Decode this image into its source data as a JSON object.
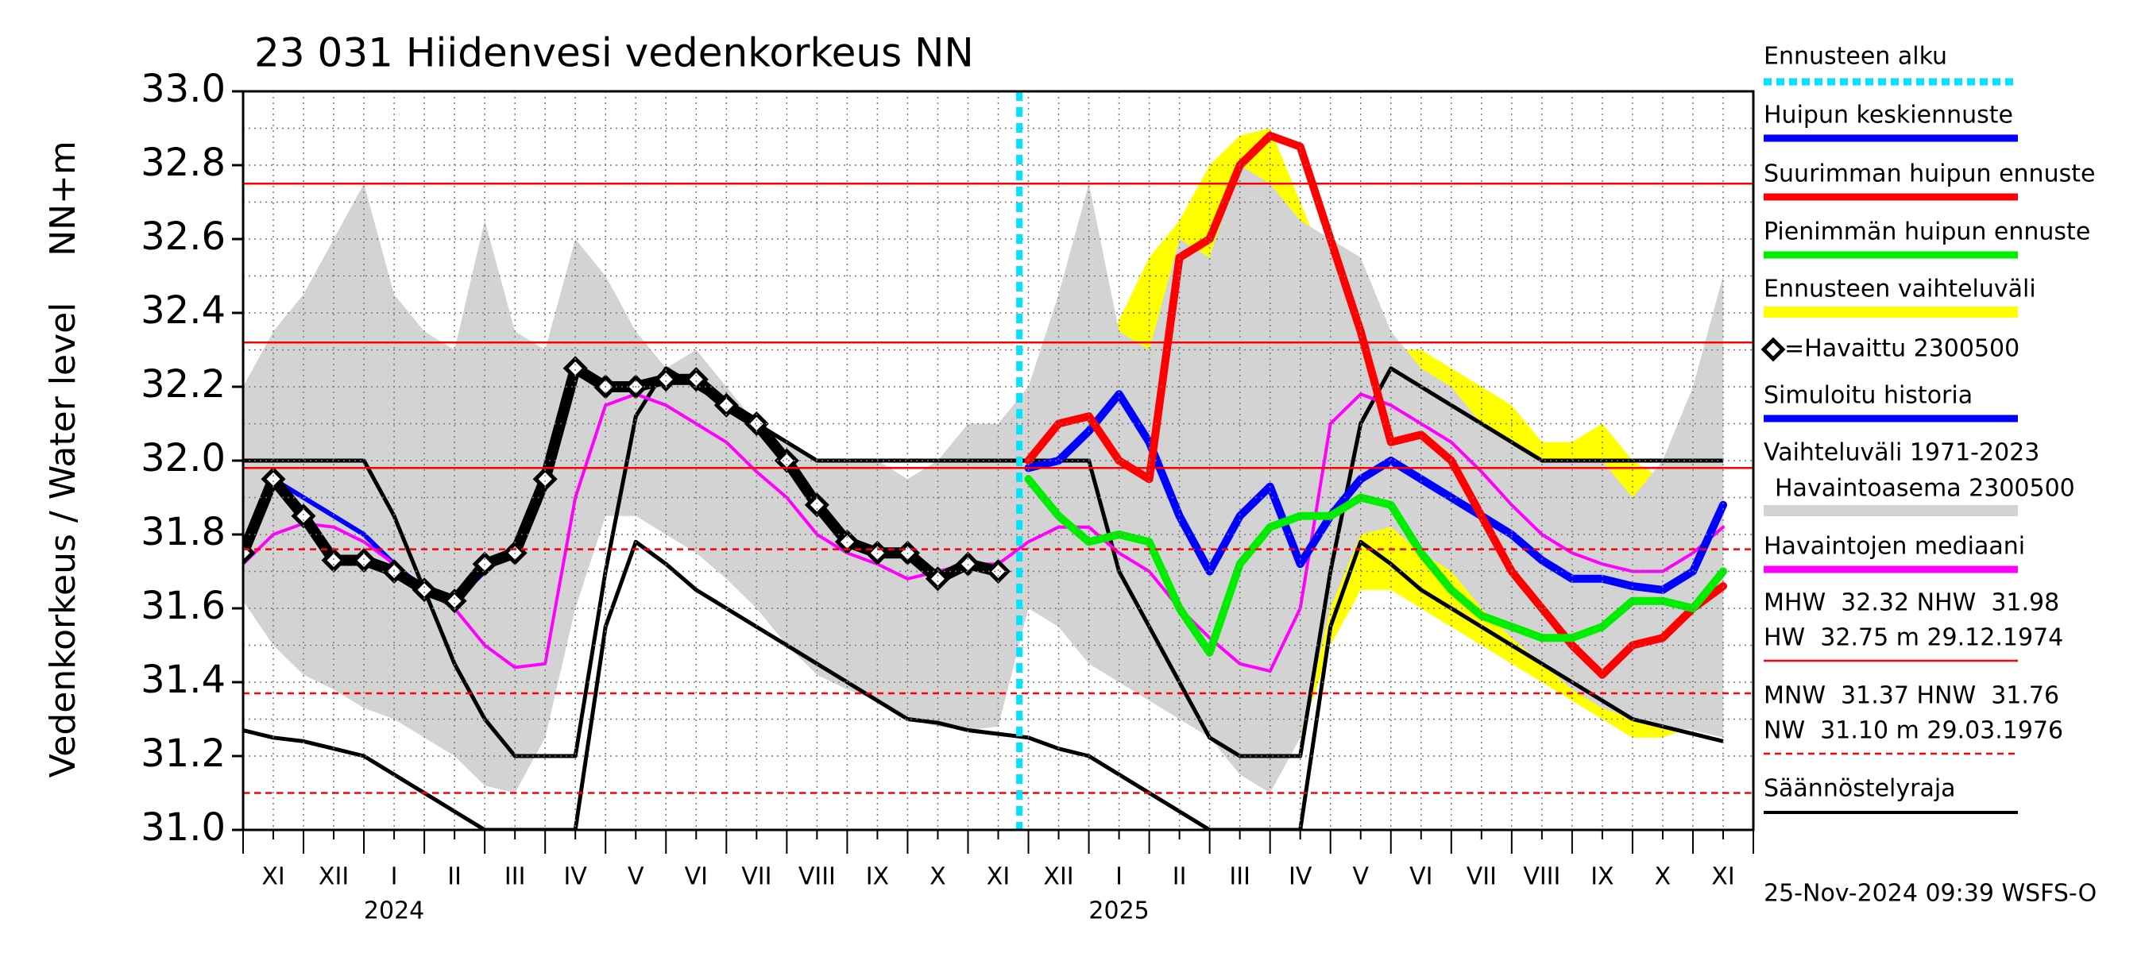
{
  "chart_data": {
    "type": "line",
    "title": "23 031 Hiidenvesi vedenkorkeus NN",
    "y_label": "Vedenkorkeus / Water level",
    "y_unit_label": "NN+m",
    "timestamp": "25-Nov-2024 09:39 WSFS-O",
    "categories": [
      null,
      "XI",
      null,
      "XII",
      null,
      "I",
      null,
      "II",
      null,
      "III",
      null,
      "IV",
      null,
      "V",
      null,
      "VI",
      null,
      "VII",
      null,
      "VIII",
      null,
      "IX",
      null,
      "X",
      null,
      "XI",
      null,
      "XII",
      null,
      "I",
      null,
      "II",
      null,
      "III",
      null,
      "IV",
      null,
      "V",
      null,
      "VI",
      null,
      "VII",
      null,
      "VIII",
      null,
      "IX",
      null,
      "X",
      null,
      "XI"
    ],
    "year_labels": [
      null,
      null,
      null,
      null,
      null,
      "2024",
      null,
      null,
      null,
      null,
      null,
      null,
      null,
      null,
      null,
      null,
      null,
      null,
      null,
      null,
      null,
      null,
      null,
      null,
      null,
      null,
      null,
      null,
      null,
      "2025",
      null,
      null,
      null,
      null,
      null,
      null,
      null,
      null,
      null,
      null,
      null,
      null,
      null,
      null,
      null,
      null,
      null,
      null,
      null,
      null
    ],
    "ylim": [
      31.0,
      33.0
    ],
    "yticks": [
      {
        "value": 31,
        "label": "31.0"
      },
      31.2,
      31.4,
      31.6,
      31.8,
      {
        "value": 32,
        "label": "32.0"
      },
      32.2,
      32.4,
      32.6,
      32.8,
      {
        "value": 33,
        "label": "33.0"
      }
    ],
    "y_minor_ticks": [
      31.1,
      31.3,
      31.5,
      31.7,
      31.9,
      32.1,
      32.3,
      32.5,
      32.7,
      32.9
    ],
    "grid": true,
    "forecast": {
      "name": "Ennusteen alku",
      "color": "#00e5ff",
      "start": 25.7
    },
    "series": [
      {
        "name": "Huipun keskiennuste",
        "type": "line",
        "color": "#0000ff",
        "width": 10,
        "values": [
          null,
          null,
          null,
          null,
          null,
          null,
          null,
          null,
          null,
          null,
          null,
          null,
          null,
          null,
          null,
          null,
          null,
          null,
          null,
          null,
          null,
          null,
          null,
          null,
          null,
          null,
          31.98,
          32.0,
          32.08,
          32.18,
          32.05,
          31.85,
          31.7,
          31.85,
          31.93,
          31.72,
          31.85,
          31.95,
          32.0,
          31.95,
          31.9,
          31.85,
          31.8,
          31.73,
          31.68,
          31.68,
          31.66,
          31.65,
          31.7,
          31.88
        ]
      },
      {
        "name": "Suurimman huipun ennuste",
        "type": "line",
        "color": "#ff0000",
        "width": 10,
        "values": [
          null,
          null,
          null,
          null,
          null,
          null,
          null,
          null,
          null,
          null,
          null,
          null,
          null,
          null,
          null,
          null,
          null,
          null,
          null,
          null,
          null,
          null,
          null,
          null,
          null,
          null,
          32.0,
          32.1,
          32.12,
          32.0,
          31.95,
          32.55,
          32.6,
          32.8,
          32.88,
          32.85,
          32.6,
          32.35,
          32.05,
          32.07,
          32.0,
          31.85,
          31.7,
          31.6,
          31.5,
          31.42,
          31.5,
          31.52,
          31.6,
          31.66
        ]
      },
      {
        "name": "Pienimmän huipun ennuste",
        "type": "line",
        "color": "#00ee00",
        "width": 10,
        "values": [
          null,
          null,
          null,
          null,
          null,
          null,
          null,
          null,
          null,
          null,
          null,
          null,
          null,
          null,
          null,
          null,
          null,
          null,
          null,
          null,
          null,
          null,
          null,
          null,
          null,
          null,
          31.95,
          31.85,
          31.78,
          31.8,
          31.78,
          31.6,
          31.48,
          31.72,
          31.82,
          31.85,
          31.85,
          31.9,
          31.88,
          31.75,
          31.65,
          31.58,
          31.55,
          31.52,
          31.52,
          31.55,
          31.62,
          31.62,
          31.6,
          31.7
        ]
      },
      {
        "name": "Ennusteen vaihteluväli",
        "type": "band",
        "color": "#ffff00",
        "lower": [
          null,
          null,
          null,
          null,
          null,
          null,
          null,
          null,
          null,
          null,
          null,
          null,
          null,
          null,
          null,
          null,
          null,
          null,
          null,
          null,
          null,
          null,
          null,
          null,
          null,
          null,
          31.95,
          31.82,
          31.72,
          31.65,
          31.58,
          31.5,
          31.4,
          31.35,
          31.3,
          31.25,
          31.5,
          31.65,
          31.65,
          31.6,
          31.55,
          31.5,
          31.45,
          31.4,
          31.35,
          31.3,
          31.25,
          31.25,
          31.28,
          31.3
        ],
        "upper": [
          null,
          null,
          null,
          null,
          null,
          null,
          null,
          null,
          null,
          null,
          null,
          null,
          null,
          null,
          null,
          null,
          null,
          null,
          null,
          null,
          null,
          null,
          null,
          null,
          null,
          null,
          32.0,
          32.1,
          32.2,
          32.38,
          32.55,
          32.65,
          32.8,
          32.88,
          32.9,
          32.7,
          32.5,
          32.35,
          32.3,
          32.3,
          32.25,
          32.2,
          32.15,
          32.05,
          32.05,
          32.1,
          32.0,
          31.95,
          32.0,
          32.2
        ]
      },
      {
        "name": "=Havaittu 2300500",
        "type": "points",
        "color": "#000000",
        "values": [
          31.75,
          31.95,
          31.85,
          31.73,
          31.73,
          31.7,
          31.65,
          31.62,
          31.72,
          31.75,
          31.95,
          32.25,
          32.2,
          32.2,
          32.22,
          32.22,
          32.15,
          32.1,
          32.0,
          31.88,
          31.78,
          31.75,
          31.75,
          31.68,
          31.72,
          31.7,
          null,
          null,
          null,
          null,
          null,
          null,
          null,
          null,
          null,
          null,
          null,
          null,
          null,
          null,
          null,
          null,
          null,
          null,
          null,
          null,
          null,
          null,
          null,
          null
        ]
      },
      {
        "name": "Simuloitu historia",
        "type": "line",
        "color": "#0000ff",
        "width": 6,
        "values": [
          31.75,
          31.95,
          31.9,
          31.85,
          31.8,
          31.72,
          31.65,
          31.62,
          31.7,
          null,
          null,
          null,
          null,
          null,
          null,
          null,
          null,
          null,
          null,
          null,
          null,
          null,
          null,
          null,
          null,
          null,
          null,
          null,
          null,
          null,
          null,
          null,
          null,
          null,
          null,
          null,
          null,
          null,
          null,
          null,
          null,
          null,
          null,
          null,
          null,
          null,
          null,
          null,
          null,
          null
        ]
      },
      {
        "name": "Vaihteluväli 1971-2023",
        "name_2": "Havaintoasema 2300500",
        "type": "band",
        "color": "#d3d3d3",
        "lower": [
          31.62,
          31.5,
          31.42,
          31.38,
          31.33,
          31.3,
          31.25,
          31.2,
          31.12,
          31.1,
          31.25,
          31.6,
          31.85,
          31.85,
          31.8,
          31.75,
          31.68,
          31.6,
          31.5,
          31.42,
          31.38,
          31.35,
          31.3,
          31.28,
          31.27,
          31.28,
          31.6,
          31.55,
          31.45,
          31.4,
          31.35,
          31.3,
          31.25,
          31.15,
          31.1,
          31.25,
          31.6,
          31.8,
          31.82,
          31.75,
          31.7,
          31.6,
          31.52,
          31.45,
          31.38,
          31.33,
          31.3,
          31.28,
          31.27,
          31.25
        ],
        "upper": [
          32.2,
          32.35,
          32.45,
          32.6,
          32.75,
          32.45,
          32.35,
          32.3,
          32.65,
          32.35,
          32.3,
          32.6,
          32.5,
          32.35,
          32.25,
          32.3,
          32.2,
          32.1,
          32.05,
          32.0,
          32.0,
          32.0,
          31.95,
          32.0,
          32.1,
          32.1,
          32.2,
          32.45,
          32.75,
          32.35,
          32.3,
          32.6,
          32.55,
          32.8,
          32.75,
          32.65,
          32.6,
          32.55,
          32.35,
          32.25,
          32.2,
          32.1,
          32.05,
          32.0,
          32.0,
          32.0,
          31.9,
          32.0,
          32.2,
          32.5
        ]
      },
      {
        "name": "Havaintojen mediaani",
        "type": "line",
        "color": "#ff00ff",
        "width": 4,
        "values": [
          31.72,
          31.8,
          31.83,
          31.82,
          31.78,
          31.72,
          31.65,
          31.6,
          31.5,
          31.44,
          31.45,
          31.9,
          32.15,
          32.18,
          32.15,
          32.1,
          32.05,
          31.97,
          31.9,
          31.8,
          31.75,
          31.72,
          31.68,
          31.7,
          31.72,
          31.72,
          31.78,
          31.82,
          31.82,
          31.75,
          31.7,
          31.6,
          31.52,
          31.45,
          31.43,
          31.6,
          32.1,
          32.18,
          32.15,
          32.1,
          32.05,
          31.97,
          31.88,
          31.8,
          31.75,
          31.72,
          31.7,
          31.7,
          31.75,
          31.82
        ]
      }
    ],
    "reference_lines": [
      {
        "value": 32.75,
        "color": "#ff0000",
        "dashed": false
      },
      {
        "value": 32.32,
        "color": "#ff0000",
        "dashed": false
      },
      {
        "value": 31.98,
        "color": "#ff0000",
        "dashed": false
      },
      {
        "value": 31.76,
        "color": "#ff0000",
        "dashed": true
      },
      {
        "value": 31.37,
        "color": "#ff0000",
        "dashed": true
      },
      {
        "value": 31.1,
        "color": "#ff0000",
        "dashed": true
      }
    ],
    "reference_legend": [
      {
        "lines": [
          "MHW  32.32 NHW  31.98",
          "HW  32.75 m 29.12.1974"
        ],
        "color": "#ff0000",
        "dashed": false
      },
      {
        "lines": [
          "MNW  31.37 HNW  31.76",
          "NW  31.10 m 29.03.1976"
        ],
        "color": "#ff0000",
        "dashed": true
      }
    ],
    "regulation": {
      "name": "Säännöstelyraja",
      "color": "#000000",
      "lines": [
        [
          32.0,
          32.0,
          32.0,
          32.0,
          32.0,
          31.85,
          31.65,
          31.45,
          31.3,
          31.2,
          31.2,
          31.2,
          31.7,
          32.12,
          32.25,
          32.2,
          32.15,
          32.1,
          32.05,
          32.0,
          32.0,
          32.0,
          32.0,
          32.0,
          32.0,
          32.0,
          32.0,
          32.0,
          32.0,
          31.7,
          31.55,
          31.4,
          31.25,
          31.2,
          31.2,
          31.2,
          31.7,
          32.1,
          32.25,
          32.2,
          32.15,
          32.1,
          32.05,
          32.0,
          32.0,
          32.0,
          32.0,
          32.0,
          32.0,
          32.0
        ],
        [
          31.27,
          31.25,
          31.24,
          31.22,
          31.2,
          31.15,
          31.1,
          31.05,
          31.0,
          31.0,
          31.0,
          31.0,
          31.55,
          31.78,
          31.72,
          31.65,
          31.6,
          31.55,
          31.5,
          31.45,
          31.4,
          31.35,
          31.3,
          31.29,
          31.27,
          31.26,
          31.25,
          31.22,
          31.2,
          31.15,
          31.1,
          31.05,
          31.0,
          31.0,
          31.0,
          31.0,
          31.55,
          31.78,
          31.72,
          31.65,
          31.6,
          31.55,
          31.5,
          31.45,
          31.4,
          31.35,
          31.3,
          31.28,
          31.26,
          31.24
        ]
      ]
    }
  }
}
